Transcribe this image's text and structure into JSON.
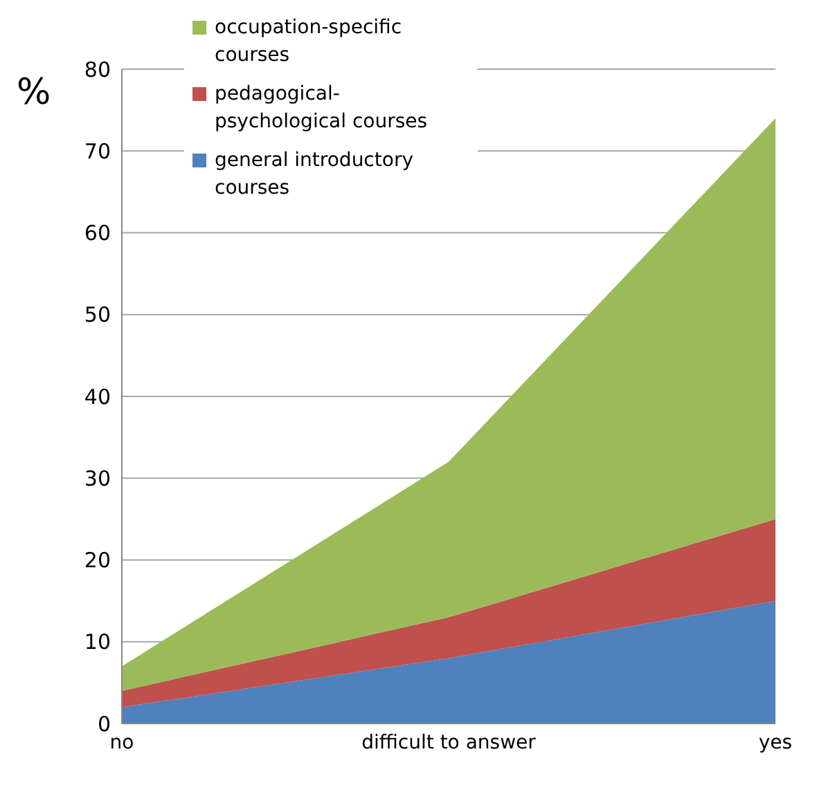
{
  "chart_data": {
    "type": "area",
    "stacked": true,
    "ylabel": "%",
    "categories": [
      "no",
      "difficult to answer",
      "yes"
    ],
    "series": [
      {
        "name": "general introductory courses",
        "color": "#4f81bd",
        "values": [
          2,
          8,
          15
        ]
      },
      {
        "name": "pedagogical-psychological courses",
        "color": "#c0504d",
        "values": [
          2,
          5,
          10
        ]
      },
      {
        "name": "occupation-specific courses",
        "color": "#9bbb59",
        "values": [
          3,
          19,
          49
        ]
      }
    ],
    "ylim": [
      0,
      80
    ],
    "yticks": [
      0,
      10,
      20,
      30,
      40,
      50,
      60,
      70,
      80
    ],
    "grid": "y",
    "legend": "top left"
  }
}
